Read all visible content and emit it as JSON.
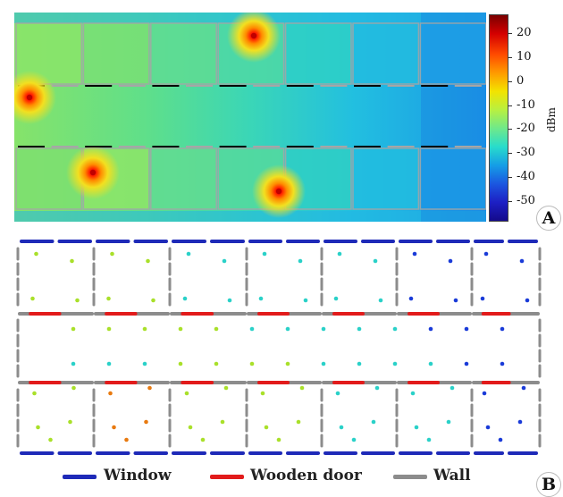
{
  "panel_a": {
    "letter": "A",
    "colorbar": {
      "unit": "dBm",
      "ticks": [
        "20",
        "10",
        "0",
        "-10",
        "-20",
        "-30",
        "-40",
        "-50"
      ],
      "tick_values": [
        20,
        10,
        0,
        -10,
        -20,
        -30,
        -40,
        -50
      ],
      "range": [
        -58,
        28
      ]
    },
    "colors": {
      "background": "#1aa3e8",
      "source_outer": "#ff4400",
      "source_core": "#c00000",
      "divider_black": "#000000",
      "divider_gray": "#a6a6a6"
    },
    "sources": [
      {
        "room": "top-4"
      },
      {
        "room": "corridor-left"
      },
      {
        "room": "bottom-2"
      },
      {
        "room": "bottom-4"
      }
    ]
  },
  "panel_b": {
    "letter": "B",
    "colors": {
      "window": "#1e2ab8",
      "wooden_door": "#e21b1b",
      "wall": "#8c8c8c",
      "dots_high": "#e87a10",
      "dots_mid": "#a9e02a",
      "dots_low": "#2ad1c8",
      "dots_lowest": "#1a3bd8"
    }
  },
  "legend": {
    "items": [
      {
        "label": "Window",
        "color": "#1e2ab8"
      },
      {
        "label": "Wooden door",
        "color": "#e21b1b"
      },
      {
        "label": "Wall",
        "color": "#8c8c8c"
      }
    ]
  }
}
